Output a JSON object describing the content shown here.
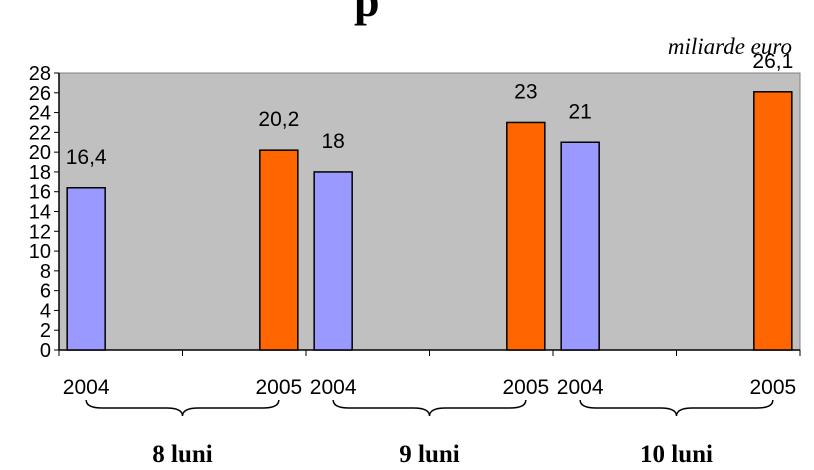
{
  "title_fragment": "p",
  "unit_label": "miliarde euro",
  "chart_data": {
    "type": "bar",
    "groups": [
      "8 luni",
      "9 luni",
      "10 luni"
    ],
    "categories": [
      "2004",
      "2005",
      "2004",
      "2005",
      "2004",
      "2005"
    ],
    "values": [
      16.4,
      20.2,
      18,
      23,
      21,
      26.1
    ],
    "value_labels": [
      "16,4",
      "20,2",
      "18",
      "23",
      "21",
      "26,1"
    ],
    "yticks": [
      "0",
      "2",
      "4",
      "6",
      "8",
      "10",
      "12",
      "14",
      "16",
      "18",
      "20",
      "22",
      "24",
      "26",
      "28"
    ],
    "ylim": [
      0,
      28
    ],
    "grid": false,
    "legend": "none",
    "colors": {
      "2004": "#9999ff",
      "2005": "#ff6600",
      "plot_bg": "#c0c0c0"
    }
  }
}
